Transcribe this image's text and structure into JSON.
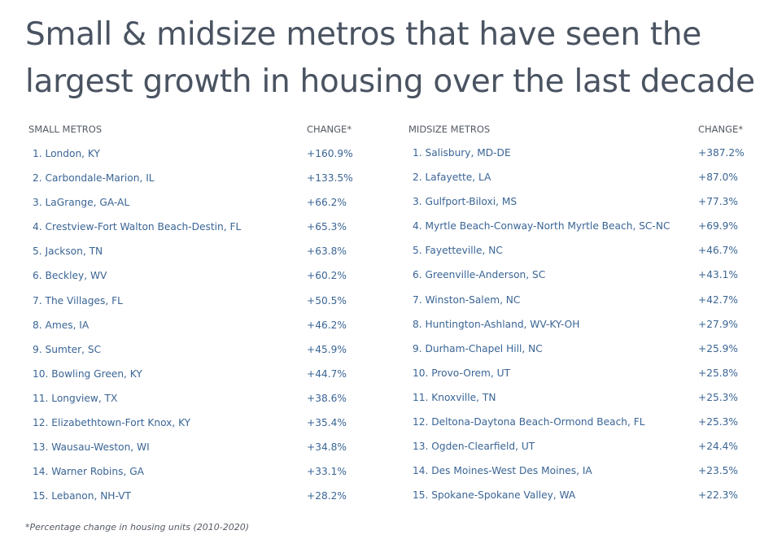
{
  "title": "Small & midsize metros that have seen the largest growth in housing over the last decade",
  "small": {
    "header": "SMALL METROS",
    "change_header": "CHANGE*",
    "rows": [
      {
        "name": "1. London, KY",
        "change": "+160.9%"
      },
      {
        "name": "2. Carbondale-Marion, IL",
        "change": "+133.5%"
      },
      {
        "name": "3. LaGrange, GA-AL",
        "change": "+66.2%"
      },
      {
        "name": "4. Crestview-Fort Walton Beach-Destin, FL",
        "change": "+65.3%"
      },
      {
        "name": "5. Jackson, TN",
        "change": "+63.8%"
      },
      {
        "name": "6. Beckley, WV",
        "change": "+60.2%"
      },
      {
        "name": "7. The Villages, FL",
        "change": "+50.5%"
      },
      {
        "name": "8. Ames, IA",
        "change": "+46.2%"
      },
      {
        "name": "9. Sumter, SC",
        "change": "+45.9%"
      },
      {
        "name": "10. Bowling Green, KY",
        "change": "+44.7%"
      },
      {
        "name": "11. Longview, TX",
        "change": "+38.6%"
      },
      {
        "name": "12. Elizabethtown-Fort Knox, KY",
        "change": "+35.4%"
      },
      {
        "name": "13. Wausau-Weston, WI",
        "change": "+34.8%"
      },
      {
        "name": "14. Warner Robins, GA",
        "change": "+33.1%"
      },
      {
        "name": "15. Lebanon, NH-VT",
        "change": "+28.2%"
      }
    ]
  },
  "midsize": {
    "header": "MIDSIZE METROS",
    "change_header": "CHANGE*",
    "rows": [
      {
        "name": "1. Salisbury, MD-DE",
        "change": "+387.2%"
      },
      {
        "name": "2. Lafayette, LA",
        "change": "+87.0%"
      },
      {
        "name": "3. Gulfport-Biloxi, MS",
        "change": "+77.3%"
      },
      {
        "name": "4. Myrtle Beach-Conway-North Myrtle Beach, SC-NC",
        "change": "+69.9%"
      },
      {
        "name": "5. Fayetteville, NC",
        "change": "+46.7%"
      },
      {
        "name": "6. Greenville-Anderson, SC",
        "change": "+43.1%"
      },
      {
        "name": "7. Winston-Salem, NC",
        "change": "+42.7%"
      },
      {
        "name": "8. Huntington-Ashland, WV-KY-OH",
        "change": "+27.9%"
      },
      {
        "name": "9. Durham-Chapel Hill, NC",
        "change": "+25.9%"
      },
      {
        "name": "10. Provo-Orem, UT",
        "change": "+25.8%"
      },
      {
        "name": "11. Knoxville, TN",
        "change": "+25.3%"
      },
      {
        "name": "12. Deltona-Daytona Beach-Ormond Beach, FL",
        "change": "+25.3%"
      },
      {
        "name": "13. Ogden-Clearfield, UT",
        "change": "+24.4%"
      },
      {
        "name": "14. Des Moines-West Des Moines, IA",
        "change": "+23.5%"
      },
      {
        "name": "15. Spokane-Spokane Valley, WA",
        "change": "+22.3%"
      }
    ]
  },
  "footnote": "*Percentage change in housing units (2010-2020)"
}
